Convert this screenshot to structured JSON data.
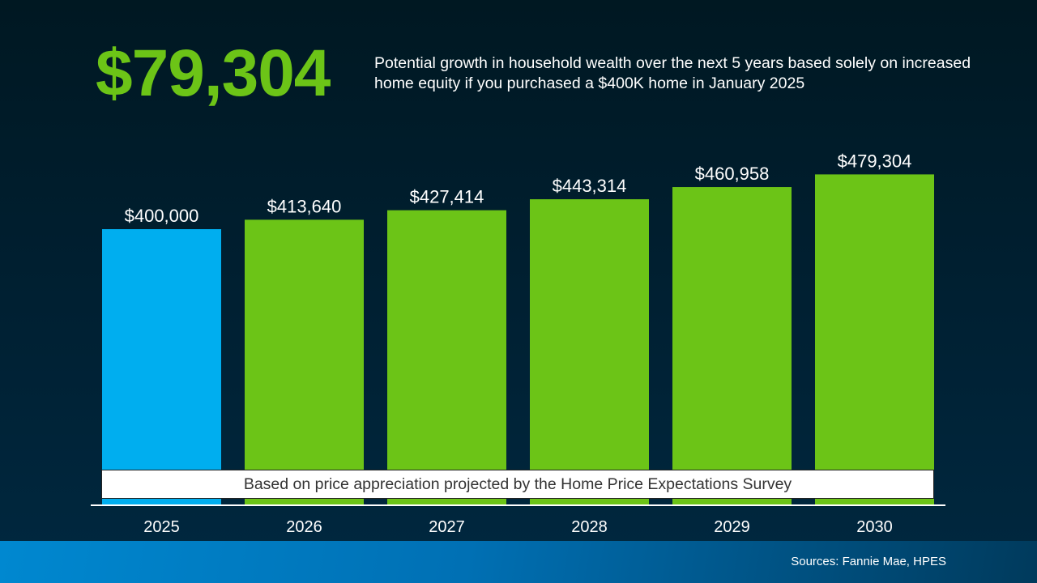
{
  "headline": {
    "value": "$79,304",
    "description": "Potential growth in household wealth over the next 5 years based solely on increased home equity if you purchased a $400K home in January 2025"
  },
  "note": "Based on price appreciation projected by the Home Price Expectations Survey",
  "footer": {
    "sources": "Sources: Fannie Mae, HPES"
  },
  "colors": {
    "headline": "#6cc417",
    "first_bar": "#00aeef",
    "bars": "#6cc417"
  },
  "chart_data": {
    "type": "bar",
    "categories": [
      "2025",
      "2026",
      "2027",
      "2028",
      "2029",
      "2030"
    ],
    "values": [
      400000,
      413640,
      427414,
      443314,
      460958,
      479304
    ],
    "data_labels": [
      "$400,000",
      "$413,640",
      "$427,414",
      "$443,314",
      "$460,958",
      "$479,304"
    ],
    "bar_colors": [
      "#00aeef",
      "#6cc417",
      "#6cc417",
      "#6cc417",
      "#6cc417",
      "#6cc417"
    ],
    "title": "",
    "xlabel": "",
    "ylabel": "",
    "ylim": [
      0,
      500000
    ],
    "grid": false,
    "legend": "none"
  }
}
